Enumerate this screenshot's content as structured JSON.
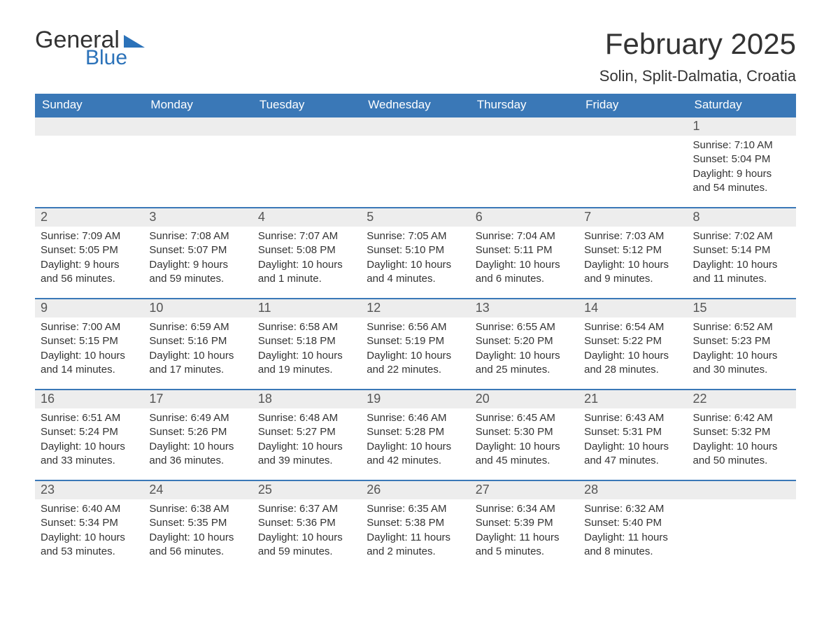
{
  "logo": {
    "text_general": "General",
    "text_blue": "Blue"
  },
  "title": "February 2025",
  "location": "Solin, Split-Dalmatia, Croatia",
  "colors": {
    "header_bg": "#3a78b7",
    "header_text": "#ffffff",
    "daynum_bg": "#ededed",
    "row_border": "#3a78b7",
    "logo_blue": "#2b72b9",
    "body_text": "#333333",
    "page_bg": "#ffffff"
  },
  "days_of_week": [
    "Sunday",
    "Monday",
    "Tuesday",
    "Wednesday",
    "Thursday",
    "Friday",
    "Saturday"
  ],
  "weeks": [
    [
      {
        "n": "",
        "sunrise": "",
        "sunset": "",
        "daylight": ""
      },
      {
        "n": "",
        "sunrise": "",
        "sunset": "",
        "daylight": ""
      },
      {
        "n": "",
        "sunrise": "",
        "sunset": "",
        "daylight": ""
      },
      {
        "n": "",
        "sunrise": "",
        "sunset": "",
        "daylight": ""
      },
      {
        "n": "",
        "sunrise": "",
        "sunset": "",
        "daylight": ""
      },
      {
        "n": "",
        "sunrise": "",
        "sunset": "",
        "daylight": ""
      },
      {
        "n": "1",
        "sunrise": "Sunrise: 7:10 AM",
        "sunset": "Sunset: 5:04 PM",
        "daylight": "Daylight: 9 hours and 54 minutes."
      }
    ],
    [
      {
        "n": "2",
        "sunrise": "Sunrise: 7:09 AM",
        "sunset": "Sunset: 5:05 PM",
        "daylight": "Daylight: 9 hours and 56 minutes."
      },
      {
        "n": "3",
        "sunrise": "Sunrise: 7:08 AM",
        "sunset": "Sunset: 5:07 PM",
        "daylight": "Daylight: 9 hours and 59 minutes."
      },
      {
        "n": "4",
        "sunrise": "Sunrise: 7:07 AM",
        "sunset": "Sunset: 5:08 PM",
        "daylight": "Daylight: 10 hours and 1 minute."
      },
      {
        "n": "5",
        "sunrise": "Sunrise: 7:05 AM",
        "sunset": "Sunset: 5:10 PM",
        "daylight": "Daylight: 10 hours and 4 minutes."
      },
      {
        "n": "6",
        "sunrise": "Sunrise: 7:04 AM",
        "sunset": "Sunset: 5:11 PM",
        "daylight": "Daylight: 10 hours and 6 minutes."
      },
      {
        "n": "7",
        "sunrise": "Sunrise: 7:03 AM",
        "sunset": "Sunset: 5:12 PM",
        "daylight": "Daylight: 10 hours and 9 minutes."
      },
      {
        "n": "8",
        "sunrise": "Sunrise: 7:02 AM",
        "sunset": "Sunset: 5:14 PM",
        "daylight": "Daylight: 10 hours and 11 minutes."
      }
    ],
    [
      {
        "n": "9",
        "sunrise": "Sunrise: 7:00 AM",
        "sunset": "Sunset: 5:15 PM",
        "daylight": "Daylight: 10 hours and 14 minutes."
      },
      {
        "n": "10",
        "sunrise": "Sunrise: 6:59 AM",
        "sunset": "Sunset: 5:16 PM",
        "daylight": "Daylight: 10 hours and 17 minutes."
      },
      {
        "n": "11",
        "sunrise": "Sunrise: 6:58 AM",
        "sunset": "Sunset: 5:18 PM",
        "daylight": "Daylight: 10 hours and 19 minutes."
      },
      {
        "n": "12",
        "sunrise": "Sunrise: 6:56 AM",
        "sunset": "Sunset: 5:19 PM",
        "daylight": "Daylight: 10 hours and 22 minutes."
      },
      {
        "n": "13",
        "sunrise": "Sunrise: 6:55 AM",
        "sunset": "Sunset: 5:20 PM",
        "daylight": "Daylight: 10 hours and 25 minutes."
      },
      {
        "n": "14",
        "sunrise": "Sunrise: 6:54 AM",
        "sunset": "Sunset: 5:22 PM",
        "daylight": "Daylight: 10 hours and 28 minutes."
      },
      {
        "n": "15",
        "sunrise": "Sunrise: 6:52 AM",
        "sunset": "Sunset: 5:23 PM",
        "daylight": "Daylight: 10 hours and 30 minutes."
      }
    ],
    [
      {
        "n": "16",
        "sunrise": "Sunrise: 6:51 AM",
        "sunset": "Sunset: 5:24 PM",
        "daylight": "Daylight: 10 hours and 33 minutes."
      },
      {
        "n": "17",
        "sunrise": "Sunrise: 6:49 AM",
        "sunset": "Sunset: 5:26 PM",
        "daylight": "Daylight: 10 hours and 36 minutes."
      },
      {
        "n": "18",
        "sunrise": "Sunrise: 6:48 AM",
        "sunset": "Sunset: 5:27 PM",
        "daylight": "Daylight: 10 hours and 39 minutes."
      },
      {
        "n": "19",
        "sunrise": "Sunrise: 6:46 AM",
        "sunset": "Sunset: 5:28 PM",
        "daylight": "Daylight: 10 hours and 42 minutes."
      },
      {
        "n": "20",
        "sunrise": "Sunrise: 6:45 AM",
        "sunset": "Sunset: 5:30 PM",
        "daylight": "Daylight: 10 hours and 45 minutes."
      },
      {
        "n": "21",
        "sunrise": "Sunrise: 6:43 AM",
        "sunset": "Sunset: 5:31 PM",
        "daylight": "Daylight: 10 hours and 47 minutes."
      },
      {
        "n": "22",
        "sunrise": "Sunrise: 6:42 AM",
        "sunset": "Sunset: 5:32 PM",
        "daylight": "Daylight: 10 hours and 50 minutes."
      }
    ],
    [
      {
        "n": "23",
        "sunrise": "Sunrise: 6:40 AM",
        "sunset": "Sunset: 5:34 PM",
        "daylight": "Daylight: 10 hours and 53 minutes."
      },
      {
        "n": "24",
        "sunrise": "Sunrise: 6:38 AM",
        "sunset": "Sunset: 5:35 PM",
        "daylight": "Daylight: 10 hours and 56 minutes."
      },
      {
        "n": "25",
        "sunrise": "Sunrise: 6:37 AM",
        "sunset": "Sunset: 5:36 PM",
        "daylight": "Daylight: 10 hours and 59 minutes."
      },
      {
        "n": "26",
        "sunrise": "Sunrise: 6:35 AM",
        "sunset": "Sunset: 5:38 PM",
        "daylight": "Daylight: 11 hours and 2 minutes."
      },
      {
        "n": "27",
        "sunrise": "Sunrise: 6:34 AM",
        "sunset": "Sunset: 5:39 PM",
        "daylight": "Daylight: 11 hours and 5 minutes."
      },
      {
        "n": "28",
        "sunrise": "Sunrise: 6:32 AM",
        "sunset": "Sunset: 5:40 PM",
        "daylight": "Daylight: 11 hours and 8 minutes."
      },
      {
        "n": "",
        "sunrise": "",
        "sunset": "",
        "daylight": ""
      }
    ]
  ]
}
